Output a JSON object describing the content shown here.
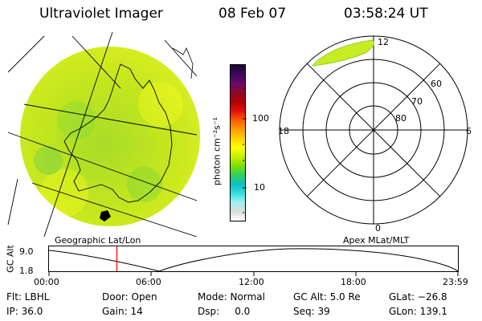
{
  "header": {
    "instrument": "Ultraviolet Imager",
    "date": "08 Feb 07",
    "time": "03:58:24 UT"
  },
  "geo_panel": {
    "label": "Geographic Lat/Lon"
  },
  "colorbar": {
    "unit_label": "photon cm⁻²s⁻¹",
    "tick_labels": [
      "100",
      "10"
    ],
    "colors": [
      "#1a0a2e",
      "#3a0a5a",
      "#6a0a6a",
      "#8a0a2a",
      "#b00000",
      "#e01010",
      "#ff5a00",
      "#ff9a00",
      "#ffd000",
      "#ffff00",
      "#c8f000",
      "#80e000",
      "#30d060",
      "#10c0c0",
      "#30e0e0",
      "#a0f0f0",
      "#dcdcdc",
      "#ffffff"
    ]
  },
  "polar_panel": {
    "label": "Apex MLat/MLT",
    "mlt_labels": {
      "top": "12",
      "left": "18",
      "right": "6",
      "bottom": "0"
    },
    "mlat_labels": [
      "60",
      "70",
      "80"
    ]
  },
  "altitude_plot": {
    "axis_label": "GC Alt",
    "y_ticks": [
      "9.0",
      "1.8"
    ],
    "x_ticks": [
      "00:00",
      "06:00",
      "12:00",
      "18:00",
      "23:59"
    ],
    "current_time_fraction": 0.166,
    "marker_color": "#ff0000"
  },
  "status": {
    "filter": "Flt: LBHL",
    "door": "Door: Open",
    "mode": "Mode: Normal",
    "gc_alt": "GC Alt: 5.0 Re",
    "glat": "GLat: −26.8",
    "ip": "IP: 36.0",
    "gain": "Gain: 14",
    "dsp": "Dsp:     0.0",
    "seq": "Seq: 39",
    "glon": "GLon: 139.1"
  }
}
